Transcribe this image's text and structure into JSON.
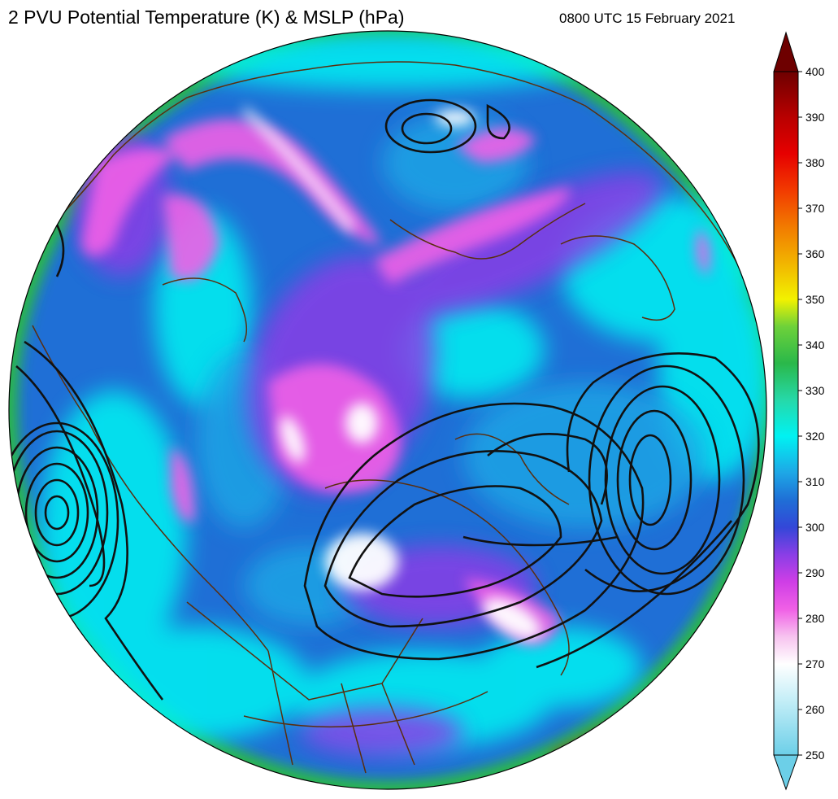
{
  "header": {
    "title": "2 PVU Potential Temperature (K) & MSLP (hPa)",
    "valid_time": "0800 UTC 15 February 2021"
  },
  "colorbar": {
    "min": 250,
    "max": 400,
    "tick_labels": [
      "400",
      "390",
      "380",
      "370",
      "360",
      "350",
      "340",
      "330",
      "320",
      "310",
      "300",
      "290",
      "280",
      "270",
      "260",
      "250"
    ],
    "extend": "both",
    "color_stops": [
      {
        "value": 250,
        "color": "#6ccfe8"
      },
      {
        "value": 262,
        "color": "#c4eef7"
      },
      {
        "value": 270,
        "color": "#ffffff"
      },
      {
        "value": 276,
        "color": "#f7c3ef"
      },
      {
        "value": 282,
        "color": "#f060e6"
      },
      {
        "value": 288,
        "color": "#cf3ee6"
      },
      {
        "value": 294,
        "color": "#8a3ee6"
      },
      {
        "value": 300,
        "color": "#3347d8"
      },
      {
        "value": 306,
        "color": "#1f6fd6"
      },
      {
        "value": 312,
        "color": "#1ea7e6"
      },
      {
        "value": 320,
        "color": "#00f2f2"
      },
      {
        "value": 328,
        "color": "#26d8a8"
      },
      {
        "value": 336,
        "color": "#2ab84a"
      },
      {
        "value": 344,
        "color": "#6dd13a"
      },
      {
        "value": 350,
        "color": "#f2f200"
      },
      {
        "value": 358,
        "color": "#f2b400"
      },
      {
        "value": 366,
        "color": "#f27a00"
      },
      {
        "value": 374,
        "color": "#f23a00"
      },
      {
        "value": 382,
        "color": "#e60000"
      },
      {
        "value": 390,
        "color": "#b80000"
      },
      {
        "value": 400,
        "color": "#6e0000"
      }
    ]
  },
  "map": {
    "projection": "orthographic-north-polar",
    "field_colors": {
      "cool_white": "#ffffff",
      "pink": "#f060e6",
      "purple": "#8a3ee6",
      "blue": "#1f6fd6",
      "cyan": "#00f2f2",
      "green": "#2ab84a",
      "red": "#e60000",
      "isobar": "#111111",
      "coastline": "#5a2e0e"
    }
  }
}
